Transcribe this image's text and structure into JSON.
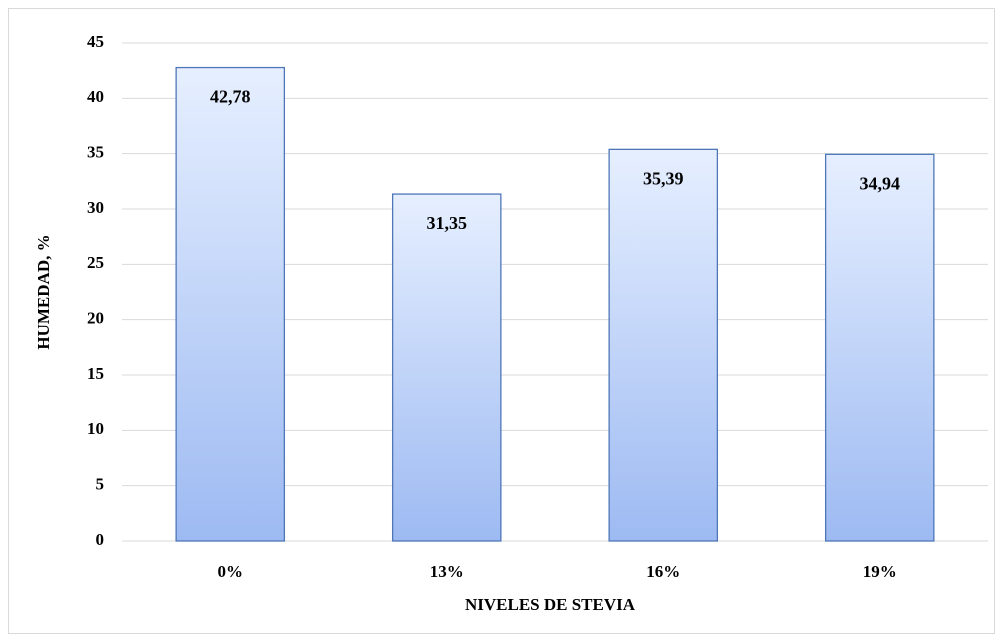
{
  "chart_data": {
    "type": "bar",
    "categories": [
      "0%",
      "13%",
      "16%",
      "19%"
    ],
    "values": [
      42.78,
      31.35,
      35.39,
      34.94
    ],
    "value_labels": [
      "42,78",
      "31,35",
      "35,39",
      "34,94"
    ],
    "color": "#9dbaf2",
    "x_label": "NIVELES DE STEVIA",
    "y_label": "HUMEDAD, %",
    "ylim": [
      0,
      45
    ],
    "yticks": [
      0,
      5,
      10,
      15,
      20,
      25,
      30,
      35,
      40,
      45
    ],
    "grid": true
  }
}
